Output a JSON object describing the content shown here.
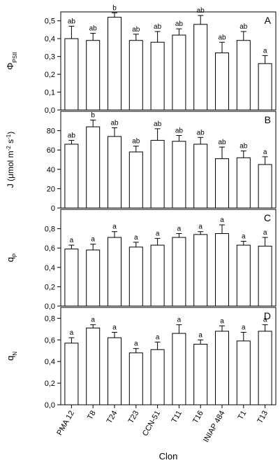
{
  "chart_data": {
    "type": "bar",
    "xlabel": "Clon",
    "categories": [
      "PMA 12",
      "T8",
      "T24",
      "T23",
      "CCN-51",
      "T11",
      "T16",
      "INIAP 484",
      "T1",
      "T13"
    ],
    "panels": [
      {
        "letter": "A",
        "ylabel_main": "Φ",
        "ylabel_sub": "PSII",
        "ylim": [
          0,
          0.55
        ],
        "yticks": [
          "0,0",
          "0,1",
          "0,2",
          "0,3",
          "0,4",
          "0,5"
        ],
        "ytick_values": [
          0,
          0.1,
          0.2,
          0.3,
          0.4,
          0.5
        ],
        "values": [
          0.4,
          0.39,
          0.52,
          0.39,
          0.38,
          0.42,
          0.48,
          0.32,
          0.39,
          0.26
        ],
        "errors": [
          0.07,
          0.04,
          0.025,
          0.035,
          0.06,
          0.035,
          0.05,
          0.06,
          0.05,
          0.045
        ],
        "letters": [
          "ab",
          "ab",
          "b",
          "ab",
          "ab",
          "ab",
          "ab",
          "ab",
          "ab",
          "a"
        ]
      },
      {
        "letter": "B",
        "ylabel_main": "J (μmol m",
        "ylabel_sup1": "-2",
        "ylabel_mid": " s",
        "ylabel_sup2": "-1",
        "ylabel_end": ")",
        "ylim": [
          0,
          100
        ],
        "yticks": [
          "0",
          "20",
          "40",
          "60",
          "80"
        ],
        "ytick_values": [
          0,
          20,
          40,
          60,
          80
        ],
        "values": [
          66,
          84,
          74,
          58,
          70,
          69,
          66,
          51,
          52,
          45
        ],
        "errors": [
          4,
          7,
          9,
          6,
          12,
          6,
          7,
          12,
          7,
          8
        ],
        "letters": [
          "ab",
          "b",
          "ab",
          "ab",
          "ab",
          "ab",
          "ab",
          "ab",
          "ab",
          "a"
        ]
      },
      {
        "letter": "C",
        "ylabel_main": "q",
        "ylabel_sub": "P",
        "ylim": [
          0,
          1.0
        ],
        "yticks": [
          "0,0",
          "0,2",
          "0,4",
          "0,6",
          "0,8"
        ],
        "ytick_values": [
          0,
          0.2,
          0.4,
          0.6,
          0.8
        ],
        "values": [
          0.59,
          0.58,
          0.71,
          0.61,
          0.63,
          0.71,
          0.74,
          0.75,
          0.63,
          0.62
        ],
        "errors": [
          0.04,
          0.06,
          0.06,
          0.05,
          0.07,
          0.04,
          0.03,
          0.09,
          0.04,
          0.09
        ],
        "letters": [
          "a",
          "a",
          "a",
          "a",
          "a",
          "a",
          "a",
          "a",
          "a",
          "a"
        ]
      },
      {
        "letter": "D",
        "ylabel_main": "q",
        "ylabel_sub": "N",
        "ylim": [
          0,
          0.9
        ],
        "yticks": [
          "0,0",
          "0,2",
          "0,4",
          "0,6",
          "0,8"
        ],
        "ytick_values": [
          0,
          0.2,
          0.4,
          0.6,
          0.8
        ],
        "values": [
          0.57,
          0.71,
          0.62,
          0.48,
          0.51,
          0.66,
          0.56,
          0.68,
          0.59,
          0.68
        ],
        "errors": [
          0.05,
          0.03,
          0.05,
          0.04,
          0.07,
          0.08,
          0.04,
          0.05,
          0.08,
          0.06
        ],
        "letters": [
          "a",
          "a",
          "a",
          "a",
          "a",
          "a",
          "a",
          "a",
          "a",
          "a"
        ]
      }
    ]
  }
}
